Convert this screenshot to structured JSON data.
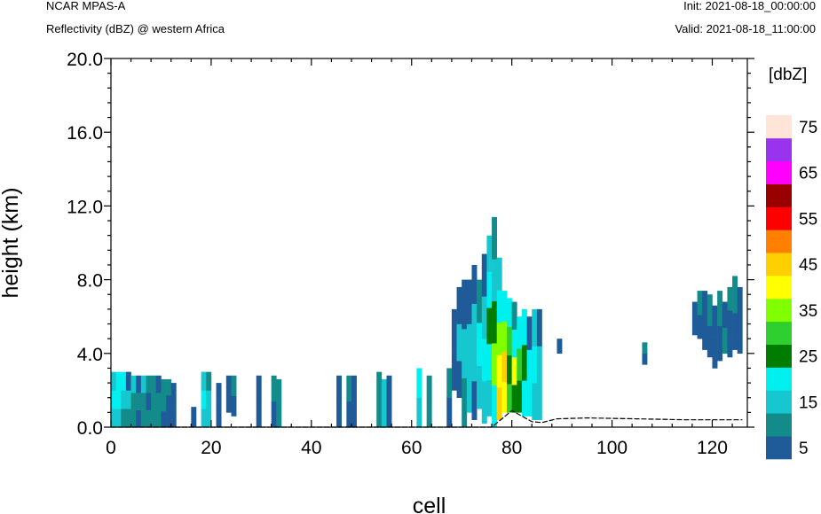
{
  "header": {
    "model": "NCAR MPAS-A",
    "field": "Reflectivity (dBZ) @ western Africa",
    "init": "Init: 2021-08-18_00:00:00",
    "valid": "Valid: 2021-08-18_11:00:00"
  },
  "chart_data": {
    "type": "heatmap",
    "xlabel": "cell",
    "ylabel": "height (km)",
    "xlim": [
      0,
      127
    ],
    "ylim": [
      0,
      20
    ],
    "x_ticks": [
      "0",
      "20",
      "40",
      "60",
      "80",
      "100",
      "120"
    ],
    "y_ticks": [
      "0.0",
      "4.0",
      "8.0",
      "12.0",
      "16.0",
      "20.0"
    ],
    "colorbar": {
      "units": "[dbZ]",
      "levels": [
        5,
        10,
        15,
        20,
        25,
        30,
        35,
        40,
        45,
        50,
        55,
        60,
        65,
        70,
        75
      ],
      "labels": [
        "5",
        "15",
        "25",
        "35",
        "45",
        "55",
        "65",
        "75"
      ],
      "colors": [
        "#1f5b99",
        "#138b8b",
        "#16c7cf",
        "#00f0f0",
        "#007d00",
        "#2fcf2f",
        "#7fff00",
        "#ffff00",
        "#ffd000",
        "#ff8000",
        "#ff0000",
        "#990000",
        "#ff00ff",
        "#9933ee",
        "#ffe4d8"
      ]
    },
    "columns": [
      {
        "x": 0,
        "bot": 0,
        "top": 3,
        "lev": [
          15,
          20,
          15
        ]
      },
      {
        "x": 1,
        "bot": 0,
        "top": 3,
        "lev": [
          15,
          20,
          20
        ]
      },
      {
        "x": 2,
        "bot": 0,
        "top": 3,
        "lev": [
          10,
          15,
          20
        ]
      },
      {
        "x": 3,
        "bot": 0,
        "top": 3,
        "lev": [
          10,
          15,
          5
        ]
      },
      {
        "x": 4,
        "bot": 0,
        "top": 2.8,
        "lev": [
          10,
          10,
          15
        ]
      },
      {
        "x": 5,
        "bot": 0,
        "top": 2.8,
        "lev": [
          5,
          10,
          5
        ]
      },
      {
        "x": 6,
        "bot": 0,
        "top": 2.8,
        "lev": [
          10,
          10,
          15
        ]
      },
      {
        "x": 7,
        "bot": 0,
        "top": 2.8,
        "lev": [
          10,
          5,
          10
        ]
      },
      {
        "x": 8,
        "bot": 0,
        "top": 2.8,
        "lev": [
          10,
          10,
          10
        ]
      },
      {
        "x": 9,
        "bot": 0,
        "top": 2.8,
        "lev": [
          10,
          10,
          5
        ]
      },
      {
        "x": 10,
        "bot": 0,
        "top": 2.6,
        "lev": [
          5,
          10,
          10
        ]
      },
      {
        "x": 11,
        "bot": 0,
        "top": 2.6,
        "lev": [
          5,
          5,
          10
        ]
      },
      {
        "x": 12,
        "bot": 0,
        "top": 2.4,
        "lev": [
          5,
          5,
          5
        ]
      },
      {
        "x": 16,
        "bot": 0,
        "top": 1.1,
        "lev": [
          5
        ]
      },
      {
        "x": 18,
        "bot": 0,
        "top": 3,
        "lev": [
          15,
          20,
          15
        ]
      },
      {
        "x": 19,
        "bot": 0,
        "top": 3,
        "lev": [
          15,
          15,
          10
        ]
      },
      {
        "x": 21,
        "bot": 0,
        "top": 2.4,
        "lev": [
          5,
          5
        ]
      },
      {
        "x": 23,
        "bot": 0.8,
        "top": 2.8,
        "lev": [
          5,
          5
        ]
      },
      {
        "x": 24,
        "bot": 0.6,
        "top": 2.8,
        "lev": [
          5,
          10
        ]
      },
      {
        "x": 29,
        "bot": 0,
        "top": 2.8,
        "lev": [
          5,
          5
        ]
      },
      {
        "x": 32,
        "bot": 0,
        "top": 2.8,
        "lev": [
          5,
          10
        ]
      },
      {
        "x": 33,
        "bot": 0,
        "top": 2.6,
        "lev": [
          10,
          10
        ]
      },
      {
        "x": 45,
        "bot": 0,
        "top": 2.8,
        "lev": [
          5,
          5
        ]
      },
      {
        "x": 47,
        "bot": 0,
        "top": 2.8,
        "lev": [
          5,
          10
        ]
      },
      {
        "x": 48,
        "bot": 0,
        "top": 2.8,
        "lev": [
          5,
          5
        ]
      },
      {
        "x": 53,
        "bot": 0,
        "top": 3,
        "lev": [
          10,
          10
        ]
      },
      {
        "x": 54,
        "bot": 0,
        "top": 2.6,
        "lev": [
          15,
          15
        ]
      },
      {
        "x": 55,
        "bot": 0,
        "top": 2.8,
        "lev": [
          5,
          5
        ]
      },
      {
        "x": 61,
        "bot": 0,
        "top": 3.2,
        "lev": [
          15,
          20
        ]
      },
      {
        "x": 63,
        "bot": 0,
        "top": 2.8,
        "lev": [
          10,
          10
        ]
      },
      {
        "x": 67,
        "bot": 0,
        "top": 3.2,
        "lev": [
          5,
          10
        ]
      },
      {
        "x": 68,
        "bot": 2,
        "top": 6.4,
        "lev": [
          5,
          5
        ]
      },
      {
        "x": 69,
        "bot": 1.6,
        "top": 7.6,
        "lev": [
          5,
          15,
          5
        ]
      },
      {
        "x": 70,
        "bot": 0,
        "top": 8,
        "lev": [
          10,
          15,
          5
        ]
      },
      {
        "x": 71,
        "bot": 0.8,
        "top": 8,
        "lev": [
          15,
          15,
          5
        ]
      },
      {
        "x": 72,
        "bot": 0.4,
        "top": 8.8,
        "lev": [
          5,
          15,
          15,
          5
        ]
      },
      {
        "x": 73,
        "bot": 1,
        "top": 8,
        "lev": [
          15,
          20,
          10
        ]
      },
      {
        "x": 74,
        "bot": 0.2,
        "top": 9.4,
        "lev": [
          15,
          20,
          15,
          5
        ]
      },
      {
        "x": 75,
        "bot": 0.6,
        "top": 10.4,
        "lev": [
          15,
          20,
          25,
          20,
          15
        ]
      },
      {
        "x": 76,
        "bot": 0,
        "top": 11.4,
        "lev": [
          20,
          35,
          25,
          15,
          10
        ]
      },
      {
        "x": 77,
        "bot": 0.4,
        "top": 9.2,
        "lev": [
          45,
          40,
          35,
          20,
          15
        ]
      },
      {
        "x": 78,
        "bot": 0.8,
        "top": 7.4,
        "lev": [
          40,
          45,
          35,
          20
        ]
      },
      {
        "x": 79,
        "bot": 0.8,
        "top": 7,
        "lev": [
          30,
          25,
          30,
          20
        ]
      },
      {
        "x": 80,
        "bot": 0.8,
        "top": 6.8,
        "lev": [
          25,
          40,
          20,
          10
        ]
      },
      {
        "x": 81,
        "bot": 0.8,
        "top": 6,
        "lev": [
          25,
          30,
          20
        ]
      },
      {
        "x": 82,
        "bot": 0.6,
        "top": 6.4,
        "lev": [
          20,
          25,
          20
        ]
      },
      {
        "x": 83,
        "bot": 0.6,
        "top": 6,
        "lev": [
          20,
          20,
          5
        ]
      },
      {
        "x": 84,
        "bot": 0.4,
        "top": 6.4,
        "lev": [
          15,
          20,
          15
        ]
      },
      {
        "x": 85,
        "bot": 0.4,
        "top": 6.4,
        "lev": [
          15,
          15,
          5
        ]
      },
      {
        "x": 89,
        "bot": 4,
        "top": 4.8,
        "lev": [
          5
        ]
      },
      {
        "x": 106,
        "bot": 3.4,
        "top": 4.6,
        "lev": [
          5,
          10
        ]
      },
      {
        "x": 116,
        "bot": 5,
        "top": 6.8,
        "lev": [
          5
        ]
      },
      {
        "x": 117,
        "bot": 4.8,
        "top": 7.4,
        "lev": [
          5,
          10
        ]
      },
      {
        "x": 118,
        "bot": 4.2,
        "top": 7.4,
        "lev": [
          5,
          5
        ]
      },
      {
        "x": 119,
        "bot": 3.8,
        "top": 7.2,
        "lev": [
          5,
          10
        ]
      },
      {
        "x": 120,
        "bot": 3.2,
        "top": 6.6,
        "lev": [
          5,
          5
        ]
      },
      {
        "x": 121,
        "bot": 3.6,
        "top": 7.4,
        "lev": [
          5,
          10
        ]
      },
      {
        "x": 122,
        "bot": 4,
        "top": 6.8,
        "lev": [
          10,
          5
        ]
      },
      {
        "x": 123,
        "bot": 3.8,
        "top": 7.6,
        "lev": [
          5,
          5,
          10
        ]
      },
      {
        "x": 124,
        "bot": 4.2,
        "top": 8.2,
        "lev": [
          5,
          10
        ]
      },
      {
        "x": 125,
        "bot": 4,
        "top": 7.6,
        "lev": [
          5,
          5
        ]
      }
    ],
    "terrain": [
      [
        0,
        0
      ],
      [
        76,
        0
      ],
      [
        80,
        0.9
      ],
      [
        82,
        0.6
      ],
      [
        84,
        0.3
      ],
      [
        86,
        0.25
      ],
      [
        89,
        0.45
      ],
      [
        95,
        0.5
      ],
      [
        105,
        0.45
      ],
      [
        115,
        0.4
      ],
      [
        126,
        0.4
      ]
    ]
  }
}
